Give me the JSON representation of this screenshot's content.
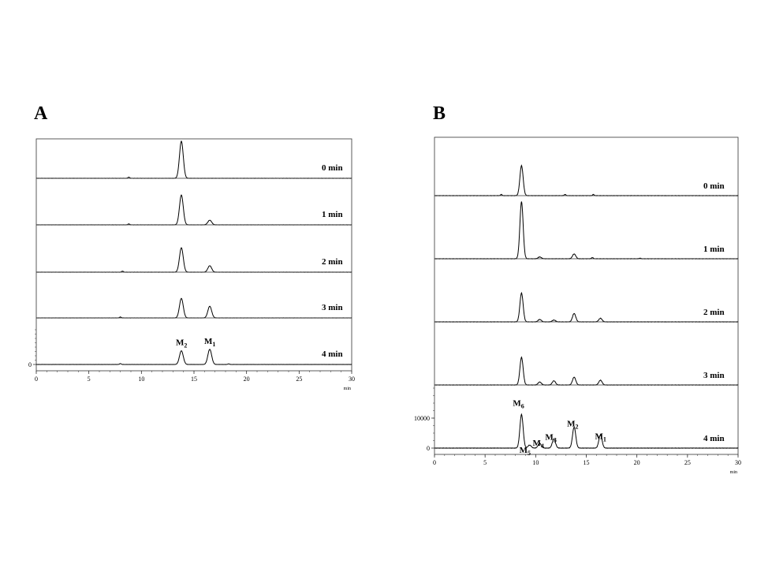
{
  "chart_data": [
    {
      "panel": "A",
      "type": "line",
      "x_unit": "min",
      "xlim": [
        0,
        30
      ],
      "x_ticks": [
        0,
        5,
        10,
        15,
        20,
        25,
        30
      ],
      "y_tick_labels": [
        "0"
      ],
      "series": [
        {
          "name": "0 min",
          "peaks": [
            {
              "x": 13.8,
              "h": 1.0
            }
          ],
          "minor": [
            {
              "x": 8.8,
              "h": 0.03
            }
          ]
        },
        {
          "name": "1 min",
          "peaks": [
            {
              "x": 13.8,
              "h": 0.9
            },
            {
              "x": 16.5,
              "h": 0.14
            }
          ],
          "minor": [
            {
              "x": 8.8,
              "h": 0.03
            }
          ]
        },
        {
          "name": "2 min",
          "peaks": [
            {
              "x": 13.8,
              "h": 0.72
            },
            {
              "x": 16.5,
              "h": 0.19
            }
          ],
          "minor": [
            {
              "x": 8.2,
              "h": 0.03
            }
          ]
        },
        {
          "name": "3 min",
          "peaks": [
            {
              "x": 13.8,
              "h": 0.62
            },
            {
              "x": 16.5,
              "h": 0.37
            }
          ],
          "minor": [
            {
              "x": 8.0,
              "h": 0.03
            }
          ]
        },
        {
          "name": "4 min",
          "peaks": [
            {
              "x": 13.8,
              "h": 0.47
            },
            {
              "x": 16.5,
              "h": 0.52
            }
          ],
          "minor": [
            {
              "x": 8.0,
              "h": 0.03
            },
            {
              "x": 18.3,
              "h": 0.02
            }
          ]
        }
      ],
      "annotations": [
        {
          "series": "4 min",
          "x": 13.8,
          "label": "M",
          "sub": "2"
        },
        {
          "series": "4 min",
          "x": 16.5,
          "label": "M",
          "sub": "1"
        }
      ]
    },
    {
      "panel": "B",
      "type": "line",
      "x_unit": "min",
      "xlim": [
        0,
        30
      ],
      "x_ticks": [
        0,
        5,
        10,
        15,
        20,
        25,
        30
      ],
      "y_tick_labels": [
        "0",
        "10000"
      ],
      "y_ticks_values": [
        0,
        10000
      ],
      "series": [
        {
          "name": "0 min",
          "peaks": [
            {
              "x": 8.6,
              "h": 0.5
            }
          ],
          "minor": [
            {
              "x": 6.6,
              "h": 0.02
            },
            {
              "x": 12.9,
              "h": 0.02
            },
            {
              "x": 15.7,
              "h": 0.02
            }
          ]
        },
        {
          "name": "1 min",
          "peaks": [
            {
              "x": 8.6,
              "h": 0.95
            },
            {
              "x": 10.4,
              "h": 0.03
            },
            {
              "x": 13.8,
              "h": 0.08
            }
          ],
          "minor": [
            {
              "x": 15.6,
              "h": 0.02
            },
            {
              "x": 20.3,
              "h": 0.01
            }
          ]
        },
        {
          "name": "2 min",
          "peaks": [
            {
              "x": 8.6,
              "h": 0.48
            },
            {
              "x": 10.4,
              "h": 0.04
            },
            {
              "x": 11.8,
              "h": 0.03
            },
            {
              "x": 13.8,
              "h": 0.14
            },
            {
              "x": 16.4,
              "h": 0.06
            }
          ],
          "minor": []
        },
        {
          "name": "3 min",
          "peaks": [
            {
              "x": 8.6,
              "h": 0.46
            },
            {
              "x": 10.4,
              "h": 0.05
            },
            {
              "x": 11.8,
              "h": 0.07
            },
            {
              "x": 13.8,
              "h": 0.13
            },
            {
              "x": 16.4,
              "h": 0.08
            }
          ],
          "minor": []
        },
        {
          "name": "4 min",
          "peaks": [
            {
              "x": 8.6,
              "h": 0.56
            },
            {
              "x": 9.4,
              "h": 0.05
            },
            {
              "x": 10.4,
              "h": 0.08
            },
            {
              "x": 11.8,
              "h": 0.15
            },
            {
              "x": 13.8,
              "h": 0.35
            },
            {
              "x": 16.4,
              "h": 0.22
            }
          ],
          "minor": []
        }
      ],
      "annotations": [
        {
          "series": "4 min",
          "x": 8.6,
          "label": "M",
          "sub": "6"
        },
        {
          "series": "4 min",
          "x": 9.4,
          "label": "M",
          "sub": "5"
        },
        {
          "series": "4 min",
          "x": 10.4,
          "label": "M",
          "sub": "4"
        },
        {
          "series": "4 min",
          "x": 11.8,
          "label": "M",
          "sub": "3"
        },
        {
          "series": "4 min",
          "x": 13.8,
          "label": "M",
          "sub": "2"
        },
        {
          "series": "4 min",
          "x": 16.4,
          "label": "M",
          "sub": "1"
        }
      ]
    }
  ]
}
